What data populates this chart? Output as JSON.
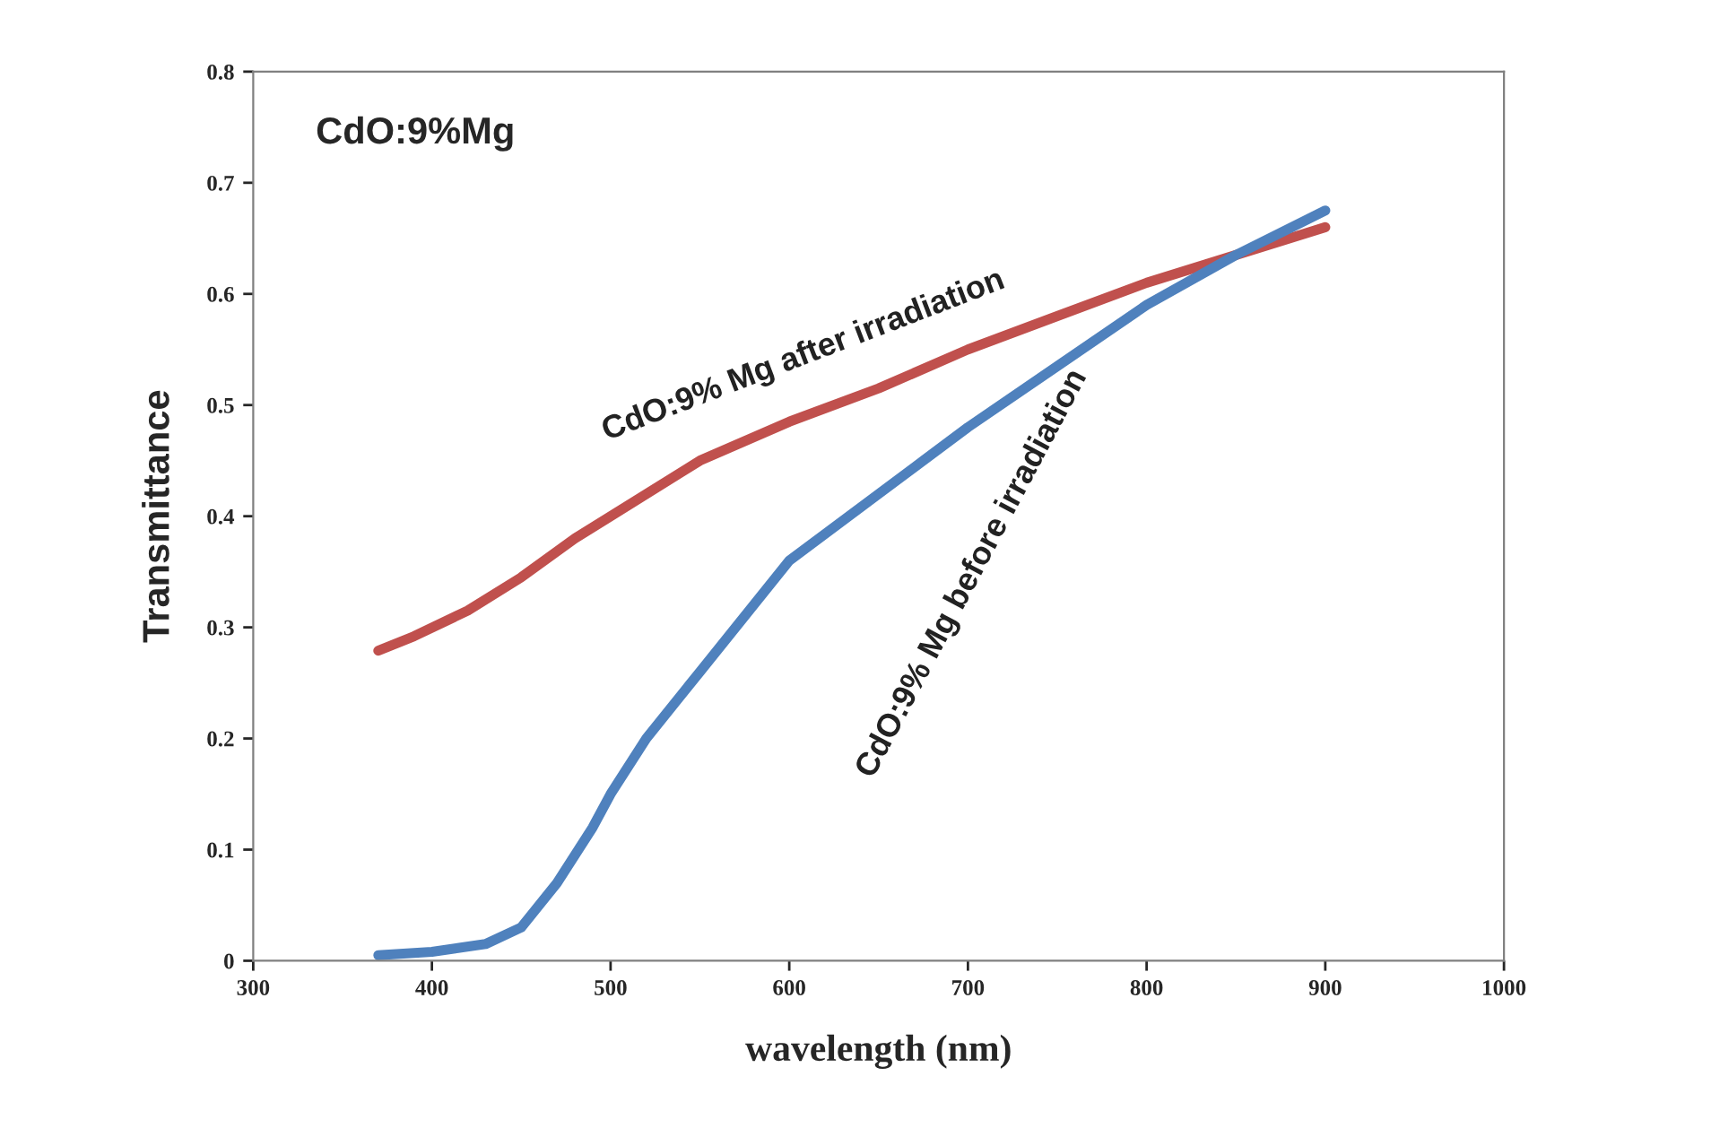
{
  "chart_data": {
    "type": "line",
    "xlabel": "wavelength (nm)",
    "ylabel": "Transmittance",
    "annotations": [
      "CdO:9%Mg"
    ],
    "xlim": [
      300,
      1000
    ],
    "xticks": [
      300,
      400,
      500,
      600,
      700,
      800,
      900,
      1000
    ],
    "ylim": [
      0,
      0.8
    ],
    "yticks": [
      0,
      0.1,
      0.2,
      0.3,
      0.4,
      0.5,
      0.6,
      0.7,
      0.8
    ],
    "grid": false,
    "legend": false,
    "series": [
      {
        "name": "CdO:9% Mg after irradiation",
        "color": "#c0504d",
        "x": [
          370,
          390,
          420,
          450,
          480,
          500,
          550,
          600,
          650,
          700,
          750,
          800,
          850,
          900
        ],
        "values": [
          0.279,
          0.292,
          0.315,
          0.345,
          0.38,
          0.4,
          0.45,
          0.485,
          0.515,
          0.55,
          0.58,
          0.61,
          0.635,
          0.66
        ]
      },
      {
        "name": "CdO:9% Mg before irradiation",
        "color": "#4f81bd",
        "x": [
          370,
          400,
          430,
          450,
          470,
          490,
          500,
          520,
          550,
          600,
          650,
          700,
          750,
          800,
          850,
          900
        ],
        "values": [
          0.005,
          0.008,
          0.015,
          0.03,
          0.07,
          0.12,
          0.15,
          0.2,
          0.26,
          0.36,
          0.42,
          0.48,
          0.535,
          0.59,
          0.635,
          0.675
        ]
      }
    ]
  }
}
